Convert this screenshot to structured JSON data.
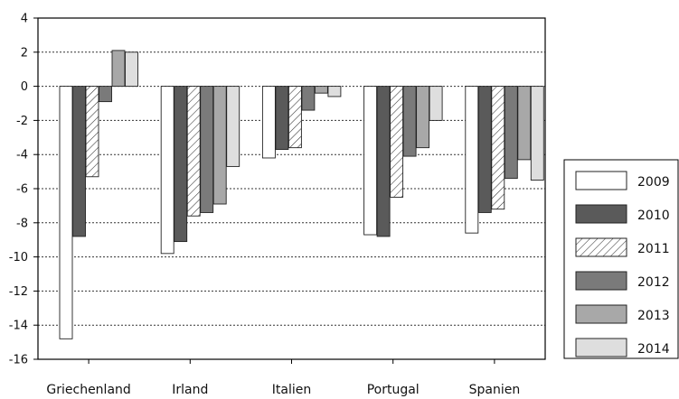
{
  "chart_data": {
    "type": "bar",
    "categories": [
      "Griechenland",
      "Irland",
      "Italien",
      "Portugal",
      "Spanien"
    ],
    "series": [
      {
        "name": "2009",
        "values": [
          -14.8,
          -9.8,
          -4.2,
          -8.7,
          -8.6
        ],
        "fill": "#ffffff",
        "pattern": "none"
      },
      {
        "name": "2010",
        "values": [
          -8.8,
          -9.1,
          -3.7,
          -8.8,
          -7.4
        ],
        "fill": "#5a5a5a",
        "pattern": "none"
      },
      {
        "name": "2011",
        "values": [
          -5.3,
          -7.6,
          -3.6,
          -6.5,
          -7.2
        ],
        "fill": "#ffffff",
        "pattern": "diagonal-hatch"
      },
      {
        "name": "2012",
        "values": [
          -0.9,
          -7.4,
          -1.4,
          -4.1,
          -5.4
        ],
        "fill": "#7a7a7a",
        "pattern": "none"
      },
      {
        "name": "2013",
        "values": [
          2.1,
          -6.9,
          -0.4,
          -3.6,
          -4.3
        ],
        "fill": "#a8a8a8",
        "pattern": "none"
      },
      {
        "name": "2014",
        "values": [
          2.0,
          -4.7,
          -0.6,
          -2.0,
          -5.5
        ],
        "fill": "#dedede",
        "pattern": "none"
      }
    ],
    "yticks": [
      4,
      2,
      0,
      -2,
      -4,
      -6,
      -8,
      -10,
      -12,
      -14,
      -16
    ],
    "ylim": [
      -16,
      4
    ],
    "grid": "horizontal dotted",
    "legend": "right",
    "title": "",
    "xlabel": "",
    "ylabel": ""
  }
}
